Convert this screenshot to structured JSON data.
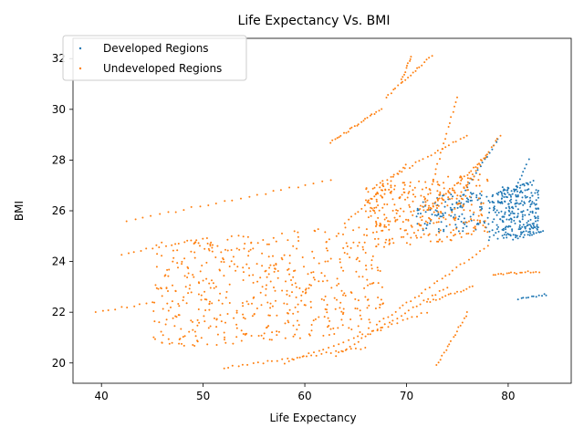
{
  "chart_data": {
    "type": "scatter",
    "title": "Life Expectancy Vs. BMI",
    "xlabel": "Life Expectancy",
    "ylabel": "BMI",
    "xlim": [
      37.2,
      86.2
    ],
    "ylim": [
      19.2,
      32.8
    ],
    "xticks": [
      40,
      50,
      60,
      70,
      80
    ],
    "yticks": [
      20,
      22,
      24,
      26,
      28,
      30,
      32
    ],
    "legend_position": "upper-left",
    "grid": false,
    "series": [
      {
        "name": "Developed Regions",
        "color": "#1f77b4",
        "clusters": [
          {
            "x": [
              78,
              83
            ],
            "y": [
              24.8,
              27.2
            ],
            "n": 260
          },
          {
            "x": [
              71,
              78
            ],
            "y": [
              25,
              26.8
            ],
            "n": 120
          }
        ],
        "lines": [
          {
            "x": [
              74.5,
              79
            ],
            "y": [
              26.0,
              28.8
            ],
            "n": 22
          },
          {
            "x": [
              79.5,
              82
            ],
            "y": [
              25.8,
              28.0
            ],
            "n": 16
          },
          {
            "x": [
              80.5,
              83.5
            ],
            "y": [
              24.9,
              25.2
            ],
            "n": 14
          },
          {
            "x": [
              81,
              83.8
            ],
            "y": [
              22.5,
              22.7
            ],
            "n": 12
          },
          {
            "x": [
              79,
              82.5
            ],
            "y": [
              26.6,
              27.2
            ],
            "n": 12
          }
        ]
      },
      {
        "name": "Undeveloped Regions",
        "color": "#ff7f0e",
        "clusters": [
          {
            "x": [
              45,
              68
            ],
            "y": [
              20.5,
              25.5
            ],
            "n": 520
          },
          {
            "x": [
              66,
              78
            ],
            "y": [
              24.5,
              27.5
            ],
            "n": 300
          }
        ],
        "lines": [
          {
            "x": [
              52,
              66
            ],
            "y": [
              19.8,
              20.6
            ],
            "n": 30
          },
          {
            "x": [
              58,
              72
            ],
            "y": [
              20.0,
              22.0
            ],
            "n": 30
          },
          {
            "x": [
              63,
              74
            ],
            "y": [
              20.3,
              23.0
            ],
            "n": 30
          },
          {
            "x": [
              67,
              78
            ],
            "y": [
              21.5,
              24.6
            ],
            "n": 30
          },
          {
            "x": [
              73,
              76
            ],
            "y": [
              19.9,
              22.0
            ],
            "n": 18
          },
          {
            "x": [
              72,
              76.5
            ],
            "y": [
              22.4,
              23.0
            ],
            "n": 16
          },
          {
            "x": [
              62.5,
              67.5
            ],
            "y": [
              28.7,
              30.0
            ],
            "n": 24
          },
          {
            "x": [
              68,
              72.5
            ],
            "y": [
              30.5,
              32.1
            ],
            "n": 20
          },
          {
            "x": [
              69.5,
              70.5
            ],
            "y": [
              31.2,
              32.1
            ],
            "n": 10
          },
          {
            "x": [
              42.5,
              62.5
            ],
            "y": [
              25.6,
              27.2
            ],
            "n": 26
          },
          {
            "x": [
              42,
              50
            ],
            "y": [
              24.3,
              24.9
            ],
            "n": 14
          },
          {
            "x": [
              39.5,
              45
            ],
            "y": [
              22.0,
              22.4
            ],
            "n": 10
          },
          {
            "x": [
              78.5,
              83
            ],
            "y": [
              23.5,
              23.6
            ],
            "n": 18
          },
          {
            "x": [
              67,
              76
            ],
            "y": [
              27.0,
              29.0
            ],
            "n": 26
          },
          {
            "x": [
              72,
              78
            ],
            "y": [
              26.0,
              28.2
            ],
            "n": 30
          },
          {
            "x": [
              71,
              75
            ],
            "y": [
              25.0,
              30.5
            ],
            "n": 28
          },
          {
            "x": [
              75,
              79.2
            ],
            "y": [
              26.5,
              29.0
            ],
            "n": 20
          },
          {
            "x": [
              64,
              70
            ],
            "y": [
              25.5,
              27.8
            ],
            "n": 20
          }
        ]
      }
    ]
  }
}
